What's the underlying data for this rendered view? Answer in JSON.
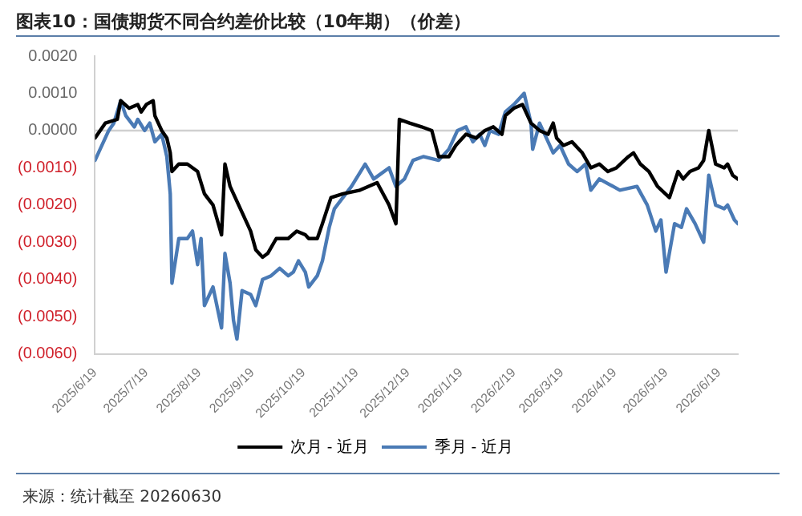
{
  "chart_data": {
    "type": "line",
    "title": "图表10：国债期货不同合约差价比较（10年期）（价差）",
    "annotations": [
      "来源：统计截至 20260630"
    ],
    "xlim": [
      "2025-06-19",
      "2026-06-30"
    ],
    "xticks": [
      {
        "value": "2025-06-19",
        "label": "2025/6/19"
      },
      {
        "value": "2025-07-19",
        "label": "2025/7/19"
      },
      {
        "value": "2025-08-19",
        "label": "2025/8/19"
      },
      {
        "value": "2025-09-19",
        "label": "2025/9/19"
      },
      {
        "value": "2025-10-19",
        "label": "2025/10/19"
      },
      {
        "value": "2025-11-19",
        "label": "2025/11/19"
      },
      {
        "value": "2025-12-19",
        "label": "2025/12/19"
      },
      {
        "value": "2026-01-19",
        "label": "2026/1/19"
      },
      {
        "value": "2026-02-19",
        "label": "2026/2/19"
      },
      {
        "value": "2026-03-19",
        "label": "2026/3/19"
      },
      {
        "value": "2026-04-19",
        "label": "2026/4/19"
      },
      {
        "value": "2026-05-19",
        "label": "2026/5/19"
      },
      {
        "value": "2026-06-19",
        "label": "2026/6/19"
      }
    ],
    "ylim": [
      -0.006,
      0.002
    ],
    "yticks": [
      {
        "value": 0.002,
        "label": "0.0020"
      },
      {
        "value": 0.001,
        "label": "0.0010"
      },
      {
        "value": 0,
        "label": "0.0000"
      },
      {
        "value": -0.001,
        "label": "(0.0010)"
      },
      {
        "value": -0.002,
        "label": "(0.0020)"
      },
      {
        "value": -0.003,
        "label": "(0.0030)"
      },
      {
        "value": -0.004,
        "label": "(0.0040)"
      },
      {
        "value": -0.005,
        "label": "(0.0050)"
      },
      {
        "value": -0.006,
        "label": "(0.0060)"
      }
    ],
    "grid": false,
    "ref_lines": [
      {
        "axis": "y",
        "value": 0,
        "color": "#d0d0d0"
      }
    ],
    "legend": "bottom",
    "marker": "none",
    "line_style": "solid",
    "series": [
      {
        "name": "次月 - 近月",
        "color": "#000000",
        "x": [
          "2025-06-19",
          "2025-06-25",
          "2025-07-02",
          "2025-07-04",
          "2025-07-09",
          "2025-07-14",
          "2025-07-16",
          "2025-07-19",
          "2025-07-23",
          "2025-07-24",
          "2025-07-28",
          "2025-07-31",
          "2025-08-02",
          "2025-08-03",
          "2025-08-07",
          "2025-08-12",
          "2025-08-18",
          "2025-08-22",
          "2025-08-27",
          "2025-09-01",
          "2025-09-03",
          "2025-09-06",
          "2025-09-13",
          "2025-09-18",
          "2025-09-21",
          "2025-09-25",
          "2025-09-28",
          "2025-10-03",
          "2025-10-10",
          "2025-10-15",
          "2025-10-20",
          "2025-10-22",
          "2025-10-27",
          "2025-10-30",
          "2025-11-04",
          "2025-11-11",
          "2025-11-21",
          "2025-12-01",
          "2025-12-08",
          "2025-12-12",
          "2025-12-14",
          "2025-12-20",
          "2025-12-27",
          "2026-01-02",
          "2026-01-06",
          "2026-01-12",
          "2026-01-16",
          "2026-01-22",
          "2026-01-28",
          "2026-02-02",
          "2026-02-07",
          "2026-02-12",
          "2026-02-14",
          "2026-02-19",
          "2026-02-24",
          "2026-03-01",
          "2026-03-06",
          "2026-03-11",
          "2026-03-14",
          "2026-03-16",
          "2026-03-20",
          "2026-03-25",
          "2026-03-31",
          "2026-04-05",
          "2026-04-10",
          "2026-04-15",
          "2026-04-20",
          "2026-04-27",
          "2026-04-30",
          "2026-05-04",
          "2026-05-09",
          "2026-05-14",
          "2026-05-21",
          "2026-05-26",
          "2026-05-29",
          "2026-06-02",
          "2026-06-07",
          "2026-06-10",
          "2026-06-13",
          "2026-06-17",
          "2026-06-22",
          "2026-06-24",
          "2026-06-27",
          "2026-06-30"
        ],
        "values": [
          -0.0002,
          0.0002,
          0.0003,
          0.0008,
          0.0006,
          0.0007,
          0.0005,
          0.0007,
          0.0008,
          0.0004,
          0,
          -0.0002,
          -0.0006,
          -0.0011,
          -0.0009,
          -0.0009,
          -0.0011,
          -0.0017,
          -0.002,
          -0.0028,
          -0.0009,
          -0.0015,
          -0.0022,
          -0.0027,
          -0.0032,
          -0.0034,
          -0.0033,
          -0.0029,
          -0.0029,
          -0.0027,
          -0.0028,
          -0.0029,
          -0.0029,
          -0.0025,
          -0.0018,
          -0.0017,
          -0.0016,
          -0.0014,
          -0.002,
          -0.0025,
          0.0003,
          0.0002,
          0.0001,
          0,
          -0.0007,
          -0.0007,
          -0.0004,
          -0.0001,
          -0.0002,
          0,
          0.0001,
          -0.0001,
          0.0004,
          0.0006,
          0.0007,
          0.0002,
          0,
          -0.0001,
          0.0002,
          -0.0002,
          -0.0004,
          -0.0003,
          -0.0006,
          -0.001,
          -0.0009,
          -0.0011,
          -0.001,
          -0.0007,
          -0.0006,
          -0.0009,
          -0.0011,
          -0.0015,
          -0.0018,
          -0.0011,
          -0.0013,
          -0.0011,
          -0.001,
          -0.0008,
          0,
          -0.0009,
          -0.001,
          -0.0009,
          -0.0012,
          -0.0013
        ]
      },
      {
        "name": "季月 - 近月",
        "color": "#4a7ab5",
        "x": [
          "2025-06-19",
          "2025-06-22",
          "2025-06-27",
          "2025-06-30",
          "2025-07-04",
          "2025-07-07",
          "2025-07-12",
          "2025-07-14",
          "2025-07-18",
          "2025-07-21",
          "2025-07-24",
          "2025-07-28",
          "2025-07-31",
          "2025-08-02",
          "2025-08-03",
          "2025-08-07",
          "2025-08-12",
          "2025-08-15",
          "2025-08-18",
          "2025-08-20",
          "2025-08-22",
          "2025-08-27",
          "2025-09-01",
          "2025-09-03",
          "2025-09-06",
          "2025-09-08",
          "2025-09-10",
          "2025-09-13",
          "2025-09-18",
          "2025-09-21",
          "2025-09-25",
          "2025-09-30",
          "2025-10-05",
          "2025-10-10",
          "2025-10-13",
          "2025-10-16",
          "2025-10-20",
          "2025-10-22",
          "2025-10-27",
          "2025-10-30",
          "2025-11-03",
          "2025-11-06",
          "2025-11-16",
          "2025-11-24",
          "2025-11-29",
          "2025-12-08",
          "2025-12-12",
          "2025-12-17",
          "2025-12-22",
          "2025-12-28",
          "2026-01-06",
          "2026-01-12",
          "2026-01-17",
          "2026-01-22",
          "2026-01-26",
          "2026-01-30",
          "2026-02-02",
          "2026-02-05",
          "2026-02-10",
          "2026-02-14",
          "2026-02-19",
          "2026-02-25",
          "2026-03-01",
          "2026-03-02",
          "2026-03-06",
          "2026-03-11",
          "2026-03-14",
          "2026-03-18",
          "2026-03-23",
          "2026-03-28",
          "2026-04-02",
          "2026-04-05",
          "2026-04-10",
          "2026-04-22",
          "2026-05-02",
          "2026-05-08",
          "2026-05-13",
          "2026-05-16",
          "2026-05-19",
          "2026-05-24",
          "2026-05-28",
          "2026-05-31",
          "2026-06-05",
          "2026-06-10",
          "2026-06-13",
          "2026-06-17",
          "2026-06-22",
          "2026-06-24",
          "2026-06-28",
          "2026-06-30"
        ],
        "values": [
          -0.0008,
          -0.0005,
          0,
          0.0002,
          0.0008,
          0.0004,
          0.0001,
          0.0003,
          0,
          0.0002,
          -0.0003,
          -0.0001,
          -0.0007,
          -0.0017,
          -0.0041,
          -0.0029,
          -0.0029,
          -0.0027,
          -0.0036,
          -0.0029,
          -0.0047,
          -0.0042,
          -0.0053,
          -0.0033,
          -0.0041,
          -0.0051,
          -0.0056,
          -0.0043,
          -0.0044,
          -0.0047,
          -0.004,
          -0.0039,
          -0.0037,
          -0.0039,
          -0.0038,
          -0.0035,
          -0.0038,
          -0.0042,
          -0.0039,
          -0.0035,
          -0.0026,
          -0.0021,
          -0.0015,
          -0.0009,
          -0.0013,
          -0.001,
          -0.0015,
          -0.0013,
          -0.0008,
          -0.0007,
          -0.0008,
          -0.0005,
          0,
          0.0001,
          -0.0003,
          -0.0001,
          -0.0004,
          0,
          -0.0001,
          0.0005,
          0.0007,
          0.001,
          0.0002,
          -0.0005,
          0.0002,
          -0.0003,
          -0.0006,
          -0.0004,
          -0.0009,
          -0.0011,
          -0.0009,
          -0.0016,
          -0.0013,
          -0.0016,
          -0.0015,
          -0.002,
          -0.0027,
          -0.0024,
          -0.0038,
          -0.0025,
          -0.0026,
          -0.0021,
          -0.0025,
          -0.003,
          -0.0012,
          -0.002,
          -0.0021,
          -0.002,
          -0.0024,
          -0.0025
        ]
      }
    ]
  }
}
